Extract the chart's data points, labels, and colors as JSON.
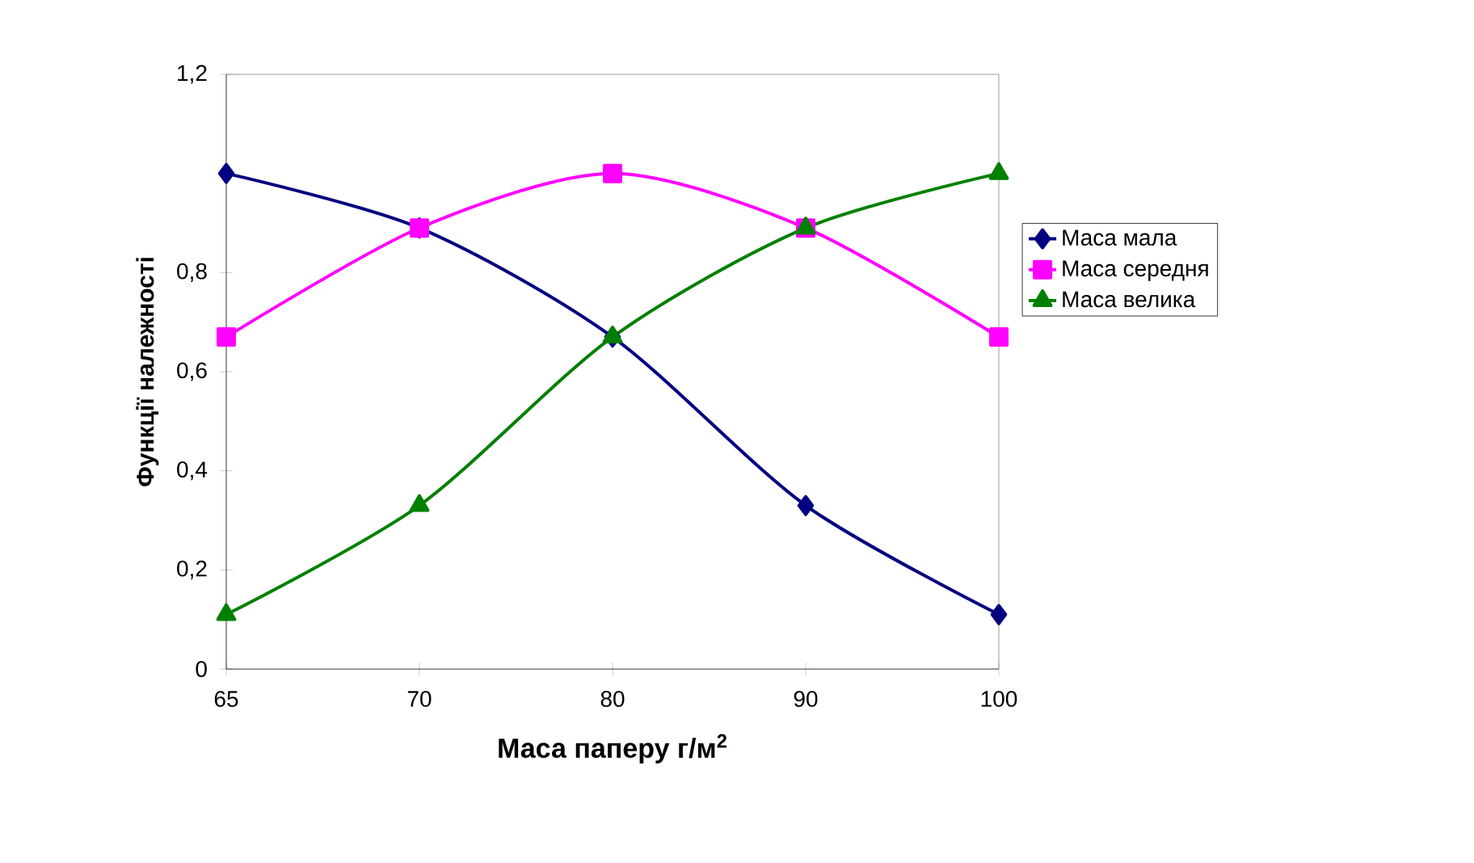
{
  "chart_data": {
    "type": "line",
    "xlabel": "Маса паперу  г/м$^{2}$",
    "ylabel": "Функції належності",
    "categories": [
      "65",
      "70",
      "80",
      "90",
      "100"
    ],
    "ylim": [
      0,
      1.2
    ],
    "yticks": [
      0,
      {
        "value": 0.2,
        "label": "0,2"
      },
      {
        "value": 0.4,
        "label": "0,4"
      },
      {
        "value": 0.6,
        "label": "0,6"
      },
      {
        "value": 0.8,
        "label": "0,8"
      },
      {
        "value": 1.2,
        "label": "1,2"
      }
    ],
    "grid": false,
    "legend": "right",
    "series": [
      {
        "name": "Маса мала",
        "color": "#000080",
        "marker": "diamond",
        "values": [
          1.0,
          0.89,
          0.67,
          0.33,
          0.11
        ]
      },
      {
        "name": "Маса середня",
        "color": "#ff00ff",
        "marker": "square",
        "values": [
          0.67,
          0.89,
          1.0,
          0.89,
          0.67
        ]
      },
      {
        "name": "Маса велика",
        "color": "#008000",
        "marker": "triangle",
        "values": [
          0.11,
          0.33,
          0.67,
          0.89,
          1.0
        ]
      }
    ]
  }
}
